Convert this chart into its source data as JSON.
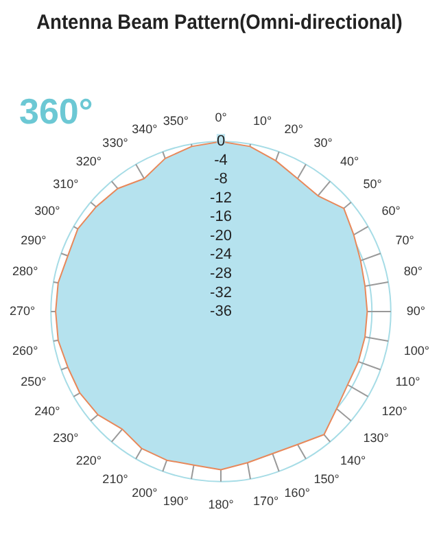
{
  "chart_data": {
    "type": "radar",
    "title": "Antenna Beam Pattern(Omni-directional)",
    "annotations": [
      "360°"
    ],
    "categories": [
      "0°",
      "10°",
      "20°",
      "30°",
      "40°",
      "50°",
      "60°",
      "70°",
      "80°",
      "90°",
      "100°",
      "110°",
      "120°",
      "130°",
      "140°",
      "150°",
      "160°",
      "170°",
      "180°",
      "190°",
      "200°",
      "210°",
      "220°",
      "230°",
      "240°",
      "250°",
      "260°",
      "270°",
      "280°",
      "290°",
      "300°",
      "310°",
      "320°",
      "330°",
      "340°",
      "350°"
    ],
    "series": [
      {
        "color": "#b5e2ee",
        "values": [
          0,
          -0.5,
          -2,
          -3.5,
          -4,
          -2,
          -3.5,
          -4.5,
          -5,
          -5,
          -5,
          -5,
          -5,
          -4,
          -2,
          -3.5,
          -4,
          -3.5,
          -2.5,
          -3,
          -2.5,
          -2.5,
          -3.5,
          -2,
          -1.5,
          -1.5,
          -1,
          -1,
          -1,
          -1.5,
          -1,
          -1.5,
          -2,
          -3.5,
          -1.5,
          -0.5
        ]
      }
    ],
    "ylim": [
      -36,
      0
    ],
    "yticks": [
      0,
      -4,
      -8,
      -12,
      -16,
      -20,
      -24,
      -28,
      -32,
      -36
    ],
    "grid": true,
    "legend": false,
    "marker": "none"
  }
}
